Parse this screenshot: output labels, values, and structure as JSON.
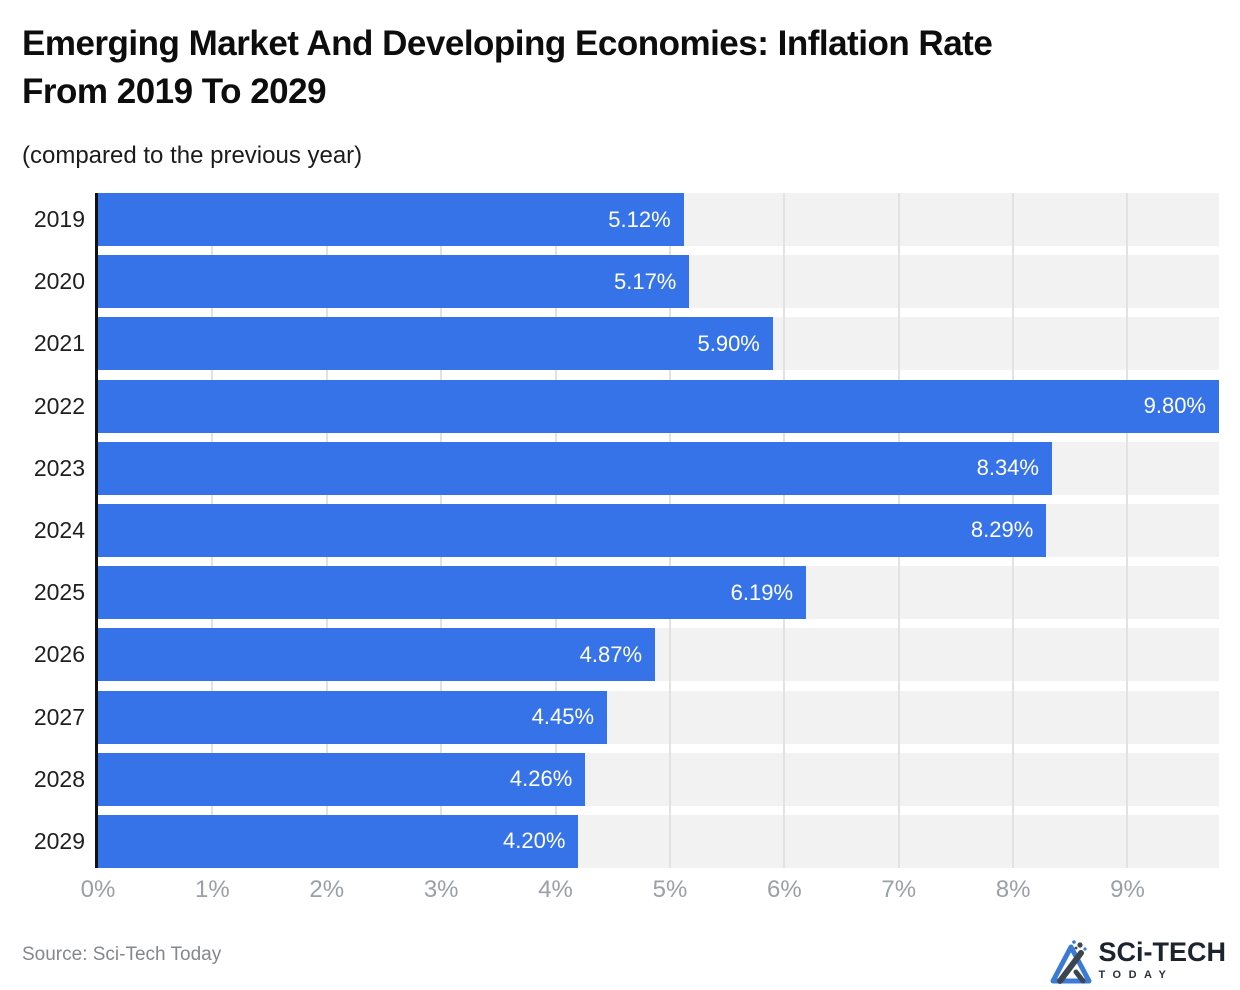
{
  "title": "Emerging Market And Developing Economies: Inflation Rate\nFrom 2019 To 2029",
  "subtitle": "(compared to the previous year)",
  "source_note": "Source: Sci-Tech Today",
  "logo": {
    "name": "SCi-TECH",
    "tagline": "TODAY"
  },
  "colors": {
    "bar": "#3673e8",
    "track": "#f2f2f2",
    "grid": "#e2e2e2",
    "axis": "#111111",
    "tick_label": "#9aa0a6",
    "year_label": "#1f1f1f",
    "value_label": "#ffffff",
    "logo_blue": "#3a7bd5",
    "logo_dark": "#3c4650"
  },
  "chart_data": {
    "type": "bar",
    "orientation": "horizontal",
    "title": "Emerging Market And Developing Economies: Inflation Rate From 2019 To 2029",
    "subtitle": "(compared to the previous year)",
    "categories": [
      "2019",
      "2020",
      "2021",
      "2022",
      "2023",
      "2024",
      "2025",
      "2026",
      "2027",
      "2028",
      "2029"
    ],
    "values": [
      5.12,
      5.17,
      5.9,
      9.8,
      8.34,
      8.29,
      6.19,
      4.87,
      4.45,
      4.26,
      4.2
    ],
    "value_labels": [
      "5.12%",
      "5.17%",
      "5.90%",
      "9.80%",
      "8.34%",
      "8.29%",
      "6.19%",
      "4.87%",
      "4.45%",
      "4.26%",
      "4.20%"
    ],
    "xlabel": "",
    "ylabel": "",
    "xlim": [
      0,
      9.8
    ],
    "xticks": [
      0,
      1,
      2,
      3,
      4,
      5,
      6,
      7,
      8,
      9
    ],
    "xtick_labels": [
      "0%",
      "1%",
      "2%",
      "3%",
      "4%",
      "5%",
      "6%",
      "7%",
      "8%",
      "9%"
    ],
    "grid": true,
    "legend_position": "none"
  }
}
